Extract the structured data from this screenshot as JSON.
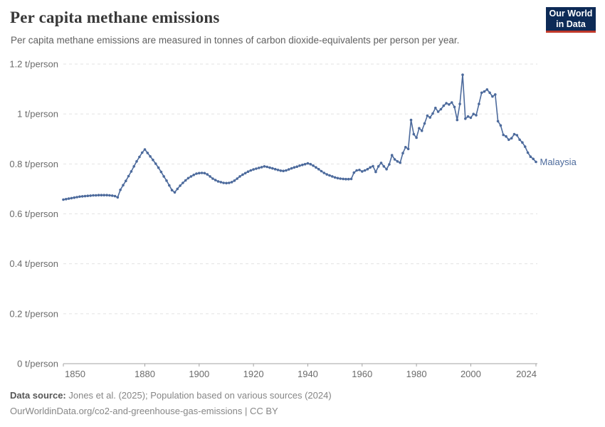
{
  "header": {
    "title": "Per capita methane emissions",
    "subtitle": "Per capita methane emissions are measured in tonnes of carbon dioxide-equivalents per person per year."
  },
  "logo": {
    "line1": "Our World",
    "line2": "in Data",
    "bg_color": "#0d2a56",
    "accent_color": "#c0392b"
  },
  "entity_label": {
    "text": "Malaysia",
    "color": "#4c6a9c"
  },
  "footer": {
    "source_prefix": "Data source:",
    "source_text": " Jones et al. (2025); Population based on various sources (2024)",
    "note_line": "OurWorldinData.org/co2-and-greenhouse-gas-emissions | CC BY"
  },
  "colors": {
    "grid": "#e2e2e2",
    "axis": "#a3a3a3",
    "tick_text": "#6b6b6b",
    "series": "#4c6a9c"
  },
  "chart_data": {
    "type": "line",
    "title": "Per capita methane emissions",
    "unit": "t/person",
    "xlim": [
      1850,
      2024
    ],
    "ylim": [
      0,
      1.2
    ],
    "grid": "horizontal-dashed",
    "legend": "end-of-line-label",
    "xticks": [
      1850,
      1880,
      1900,
      1920,
      1940,
      1960,
      1980,
      2000,
      2024
    ],
    "yticks": [
      {
        "v": 0,
        "label": "0 t/person"
      },
      {
        "v": 0.2,
        "label": "0.2 t/person"
      },
      {
        "v": 0.4,
        "label": "0.4 t/person"
      },
      {
        "v": 0.6,
        "label": "0.6 t/person"
      },
      {
        "v": 0.8,
        "label": "0.8 t/person"
      },
      {
        "v": 1,
        "label": "1 t/person"
      },
      {
        "v": 1.2,
        "label": "1.2 t/person"
      }
    ],
    "series": [
      {
        "name": "Malaysia",
        "color": "#4c6a9c",
        "points": [
          [
            1850,
            0.657
          ],
          [
            1851,
            0.659
          ],
          [
            1852,
            0.661
          ],
          [
            1853,
            0.663
          ],
          [
            1854,
            0.665
          ],
          [
            1855,
            0.667
          ],
          [
            1856,
            0.669
          ],
          [
            1857,
            0.67
          ],
          [
            1858,
            0.671
          ],
          [
            1859,
            0.672
          ],
          [
            1860,
            0.673
          ],
          [
            1861,
            0.674
          ],
          [
            1862,
            0.674
          ],
          [
            1863,
            0.675
          ],
          [
            1864,
            0.675
          ],
          [
            1865,
            0.675
          ],
          [
            1866,
            0.675
          ],
          [
            1867,
            0.674
          ],
          [
            1868,
            0.673
          ],
          [
            1869,
            0.671
          ],
          [
            1870,
            0.666
          ],
          [
            1871,
            0.696
          ],
          [
            1872,
            0.715
          ],
          [
            1873,
            0.732
          ],
          [
            1874,
            0.751
          ],
          [
            1875,
            0.77
          ],
          [
            1876,
            0.79
          ],
          [
            1877,
            0.81
          ],
          [
            1878,
            0.828
          ],
          [
            1879,
            0.845
          ],
          [
            1880,
            0.858
          ],
          [
            1881,
            0.844
          ],
          [
            1882,
            0.83
          ],
          [
            1883,
            0.816
          ],
          [
            1884,
            0.801
          ],
          [
            1885,
            0.785
          ],
          [
            1886,
            0.768
          ],
          [
            1887,
            0.75
          ],
          [
            1888,
            0.733
          ],
          [
            1889,
            0.714
          ],
          [
            1890,
            0.695
          ],
          [
            1891,
            0.686
          ],
          [
            1892,
            0.7
          ],
          [
            1893,
            0.713
          ],
          [
            1894,
            0.724
          ],
          [
            1895,
            0.734
          ],
          [
            1896,
            0.743
          ],
          [
            1897,
            0.75
          ],
          [
            1898,
            0.756
          ],
          [
            1899,
            0.761
          ],
          [
            1900,
            0.763
          ],
          [
            1901,
            0.764
          ],
          [
            1902,
            0.763
          ],
          [
            1903,
            0.758
          ],
          [
            1904,
            0.75
          ],
          [
            1905,
            0.741
          ],
          [
            1906,
            0.735
          ],
          [
            1907,
            0.73
          ],
          [
            1908,
            0.727
          ],
          [
            1909,
            0.724
          ],
          [
            1910,
            0.723
          ],
          [
            1911,
            0.724
          ],
          [
            1912,
            0.727
          ],
          [
            1913,
            0.733
          ],
          [
            1914,
            0.741
          ],
          [
            1915,
            0.75
          ],
          [
            1916,
            0.757
          ],
          [
            1917,
            0.763
          ],
          [
            1918,
            0.769
          ],
          [
            1919,
            0.774
          ],
          [
            1920,
            0.778
          ],
          [
            1921,
            0.781
          ],
          [
            1922,
            0.784
          ],
          [
            1923,
            0.787
          ],
          [
            1924,
            0.79
          ],
          [
            1925,
            0.788
          ],
          [
            1926,
            0.785
          ],
          [
            1927,
            0.782
          ],
          [
            1928,
            0.779
          ],
          [
            1929,
            0.776
          ],
          [
            1930,
            0.773
          ],
          [
            1931,
            0.772
          ],
          [
            1932,
            0.774
          ],
          [
            1933,
            0.778
          ],
          [
            1934,
            0.782
          ],
          [
            1935,
            0.786
          ],
          [
            1936,
            0.789
          ],
          [
            1937,
            0.793
          ],
          [
            1938,
            0.796
          ],
          [
            1939,
            0.799
          ],
          [
            1940,
            0.802
          ],
          [
            1941,
            0.799
          ],
          [
            1942,
            0.793
          ],
          [
            1943,
            0.786
          ],
          [
            1944,
            0.779
          ],
          [
            1945,
            0.771
          ],
          [
            1946,
            0.764
          ],
          [
            1947,
            0.758
          ],
          [
            1948,
            0.754
          ],
          [
            1949,
            0.75
          ],
          [
            1950,
            0.746
          ],
          [
            1951,
            0.743
          ],
          [
            1952,
            0.741
          ],
          [
            1953,
            0.74
          ],
          [
            1954,
            0.739
          ],
          [
            1955,
            0.739
          ],
          [
            1956,
            0.74
          ],
          [
            1957,
            0.765
          ],
          [
            1958,
            0.774
          ],
          [
            1959,
            0.776
          ],
          [
            1960,
            0.77
          ],
          [
            1961,
            0.774
          ],
          [
            1962,
            0.779
          ],
          [
            1963,
            0.786
          ],
          [
            1964,
            0.791
          ],
          [
            1965,
            0.768
          ],
          [
            1966,
            0.79
          ],
          [
            1967,
            0.804
          ],
          [
            1968,
            0.79
          ],
          [
            1969,
            0.779
          ],
          [
            1970,
            0.798
          ],
          [
            1971,
            0.835
          ],
          [
            1972,
            0.818
          ],
          [
            1973,
            0.81
          ],
          [
            1974,
            0.805
          ],
          [
            1975,
            0.843
          ],
          [
            1976,
            0.867
          ],
          [
            1977,
            0.86
          ],
          [
            1978,
            0.976
          ],
          [
            1979,
            0.919
          ],
          [
            1980,
            0.905
          ],
          [
            1981,
            0.943
          ],
          [
            1982,
            0.933
          ],
          [
            1983,
            0.962
          ],
          [
            1984,
            0.993
          ],
          [
            1985,
            0.986
          ],
          [
            1986,
            1.002
          ],
          [
            1987,
            1.024
          ],
          [
            1988,
            1.009
          ],
          [
            1989,
            1.019
          ],
          [
            1990,
            1.033
          ],
          [
            1991,
            1.043
          ],
          [
            1992,
            1.038
          ],
          [
            1993,
            1.046
          ],
          [
            1994,
            1.028
          ],
          [
            1995,
            0.976
          ],
          [
            1996,
            1.04
          ],
          [
            1997,
            1.157
          ],
          [
            1998,
            0.981
          ],
          [
            1999,
            0.99
          ],
          [
            2000,
            0.985
          ],
          [
            2001,
            1.0
          ],
          [
            2002,
            0.995
          ],
          [
            2003,
            1.04
          ],
          [
            2004,
            1.085
          ],
          [
            2005,
            1.09
          ],
          [
            2006,
            1.098
          ],
          [
            2007,
            1.085
          ],
          [
            2008,
            1.07
          ],
          [
            2009,
            1.078
          ],
          [
            2010,
            0.971
          ],
          [
            2011,
            0.954
          ],
          [
            2012,
            0.916
          ],
          [
            2013,
            0.91
          ],
          [
            2014,
            0.897
          ],
          [
            2015,
            0.903
          ],
          [
            2016,
            0.919
          ],
          [
            2017,
            0.915
          ],
          [
            2018,
            0.897
          ],
          [
            2019,
            0.886
          ],
          [
            2020,
            0.869
          ],
          [
            2021,
            0.845
          ],
          [
            2022,
            0.829
          ],
          [
            2023,
            0.82
          ],
          [
            2024,
            0.808
          ]
        ]
      }
    ]
  }
}
